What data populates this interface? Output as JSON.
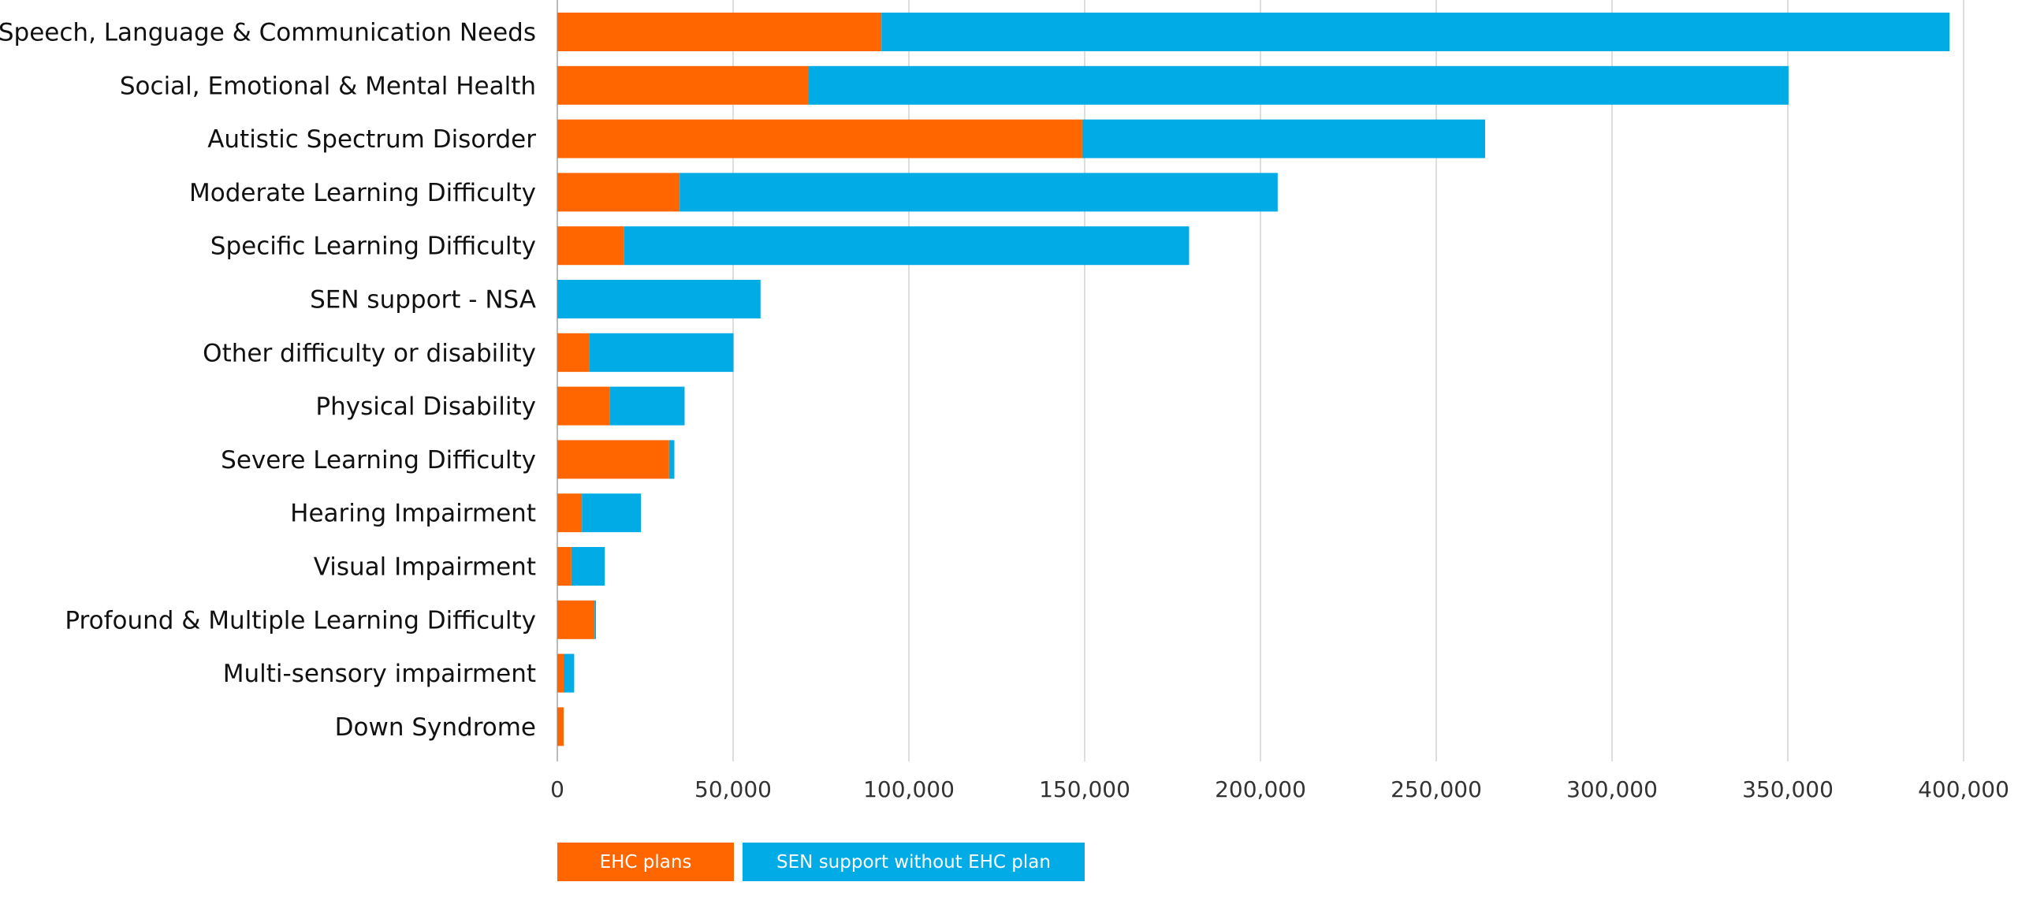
{
  "chart_data": {
    "type": "bar",
    "orientation": "horizontal",
    "stacked": true,
    "categories": [
      "Speech, Language & Communication Needs",
      "Social, Emotional & Mental Health",
      "Autistic Spectrum Disorder",
      "Moderate Learning Difficulty",
      "Specific Learning Difficulty",
      "SEN support - NSA",
      "Other difficulty or disability",
      "Physical Disability",
      "Severe Learning Difficulty",
      "Hearing Impairment",
      "Visual Impairment",
      "Profound & Multiple Learning Difficulty",
      "Multi-sensory impairment",
      "Down Syndrome"
    ],
    "series": [
      {
        "name": "EHC plans",
        "color": "#FF6600",
        "values": [
          92200,
          71400,
          149300,
          34800,
          19000,
          0,
          9100,
          15000,
          31800,
          7000,
          4000,
          10600,
          1800,
          1800
        ]
      },
      {
        "name": "SEN support without EHC plan",
        "color": "#00ABE6",
        "values": [
          303800,
          278800,
          114600,
          170100,
          160700,
          57800,
          41000,
          21200,
          1500,
          16800,
          9500,
          400,
          3000,
          0
        ]
      }
    ],
    "xlim": [
      0,
      400000
    ],
    "xticks": [
      "0",
      "50,000",
      "100,000",
      "150,000",
      "200,000",
      "250,000",
      "300,000",
      "350,000",
      "400,000"
    ],
    "grid": true,
    "legend_position": "bottom-left",
    "title": "",
    "xlabel": "",
    "ylabel": ""
  }
}
